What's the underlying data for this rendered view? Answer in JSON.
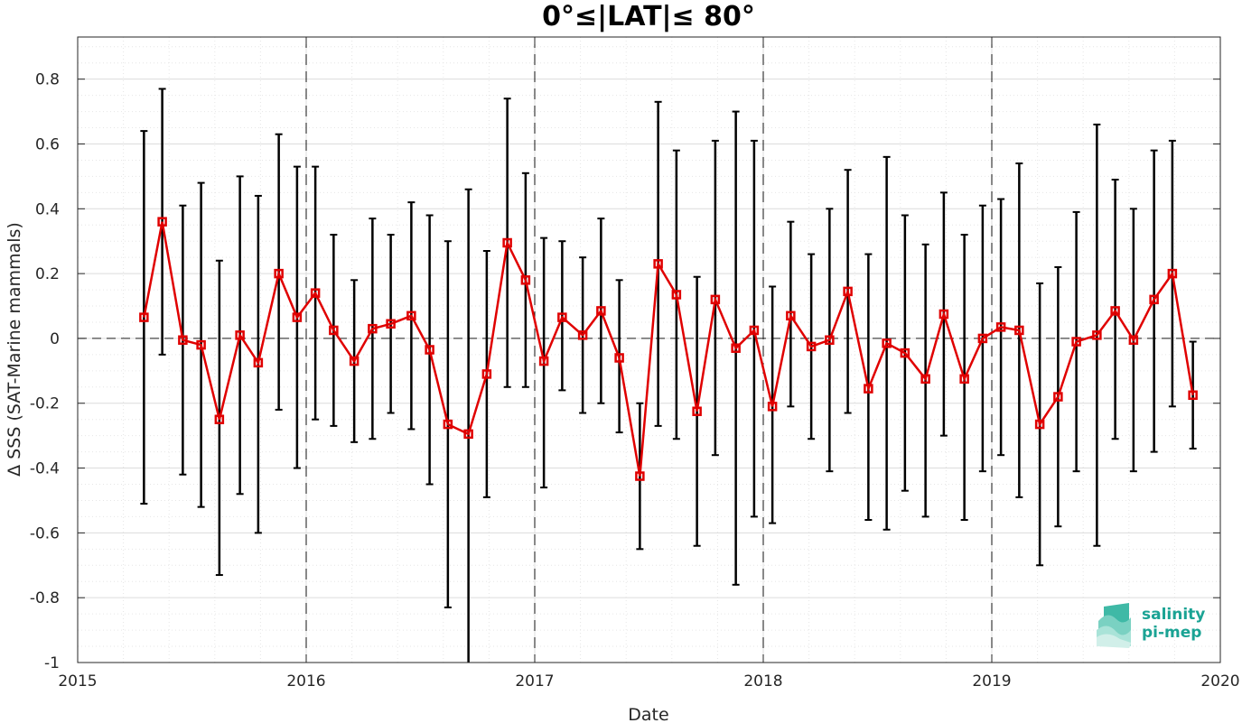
{
  "chart_data": {
    "type": "line",
    "title": "0°≤|LAT|≤ 80°",
    "xlabel": "Date",
    "ylabel": "Δ SSS (SAT-Marine mammals)",
    "xlim": [
      2015,
      2020
    ],
    "ylim": [
      -1,
      0.93
    ],
    "x_ticks": [
      "2015",
      "2016",
      "2017",
      "2018",
      "2019",
      "2020"
    ],
    "y_ticks": [
      "-1",
      "-0.8",
      "-0.6",
      "-0.4",
      "-0.2",
      "0",
      "0.2",
      "0.4",
      "0.6",
      "0.8"
    ],
    "grid": true,
    "minor_grid": true,
    "year_separators": [
      2016,
      2017,
      2018,
      2019
    ],
    "zero_line": 0,
    "colors": {
      "line": "#e00000",
      "marker": "#e00000",
      "error_bar": "#000000"
    },
    "series": [
      {
        "x": [
          2015.29,
          2015.37,
          2015.46,
          2015.54,
          2015.62,
          2015.71,
          2015.79,
          2015.88,
          2015.96,
          2016.04,
          2016.12,
          2016.21,
          2016.29,
          2016.37,
          2016.46,
          2016.54,
          2016.62,
          2016.71,
          2016.79,
          2016.88,
          2016.96,
          2017.04,
          2017.12,
          2017.21,
          2017.29,
          2017.37,
          2017.46,
          2017.54,
          2017.62,
          2017.71,
          2017.79,
          2017.88,
          2017.96,
          2018.04,
          2018.12,
          2018.21,
          2018.29,
          2018.37,
          2018.46,
          2018.54,
          2018.62,
          2018.71,
          2018.79,
          2018.88,
          2018.96,
          2019.04,
          2019.12,
          2019.21,
          2019.29,
          2019.37,
          2019.46,
          2019.54,
          2019.62,
          2019.71,
          2019.79,
          2019.88
        ],
        "y": [
          0.065,
          0.36,
          -0.005,
          -0.02,
          -0.25,
          0.01,
          -0.075,
          0.2,
          0.065,
          0.14,
          0.025,
          -0.07,
          0.03,
          0.045,
          0.07,
          -0.035,
          -0.265,
          -0.295,
          -0.11,
          0.295,
          0.18,
          -0.07,
          0.065,
          0.01,
          0.085,
          -0.06,
          -0.425,
          0.23,
          0.135,
          -0.225,
          0.12,
          -0.03,
          0.025,
          -0.21,
          0.07,
          -0.025,
          -0.005,
          0.145,
          -0.155,
          -0.015,
          -0.045,
          -0.125,
          0.075,
          -0.125,
          0.0,
          0.035,
          0.025,
          -0.265,
          -0.18,
          -0.01,
          0.01,
          0.085,
          -0.005,
          0.12,
          0.2,
          -0.175
        ],
        "err_low": [
          -0.51,
          -0.05,
          -0.42,
          -0.52,
          -0.73,
          -0.48,
          -0.6,
          -0.22,
          -0.4,
          -0.25,
          -0.27,
          -0.32,
          -0.31,
          -0.23,
          -0.28,
          -0.45,
          -0.83,
          -1.0,
          -0.49,
          -0.15,
          -0.15,
          -0.46,
          -0.16,
          -0.23,
          -0.2,
          -0.29,
          -0.65,
          -0.27,
          -0.31,
          -0.64,
          -0.36,
          -0.76,
          -0.55,
          -0.57,
          -0.21,
          -0.31,
          -0.41,
          -0.23,
          -0.56,
          -0.59,
          -0.47,
          -0.55,
          -0.3,
          -0.56,
          -0.41,
          -0.36,
          -0.49,
          -0.7,
          -0.58,
          -0.41,
          -0.64,
          -0.31,
          -0.41,
          -0.35,
          -0.21,
          -0.34
        ],
        "err_high": [
          0.64,
          0.77,
          0.41,
          0.48,
          0.24,
          0.5,
          0.44,
          0.63,
          0.53,
          0.53,
          0.32,
          0.18,
          0.37,
          0.32,
          0.42,
          0.38,
          0.3,
          0.46,
          0.27,
          0.74,
          0.51,
          0.31,
          0.3,
          0.25,
          0.37,
          0.18,
          -0.2,
          0.73,
          0.58,
          0.19,
          0.61,
          0.7,
          0.61,
          0.16,
          0.36,
          0.26,
          0.4,
          0.52,
          0.26,
          0.56,
          0.38,
          0.29,
          0.45,
          0.32,
          0.41,
          0.43,
          0.54,
          0.17,
          0.22,
          0.39,
          0.66,
          0.49,
          0.4,
          0.58,
          0.61,
          -0.01
        ]
      }
    ]
  },
  "logo": {
    "line1": "salinity",
    "line2": "pi-mep",
    "color": "#1aa394"
  }
}
